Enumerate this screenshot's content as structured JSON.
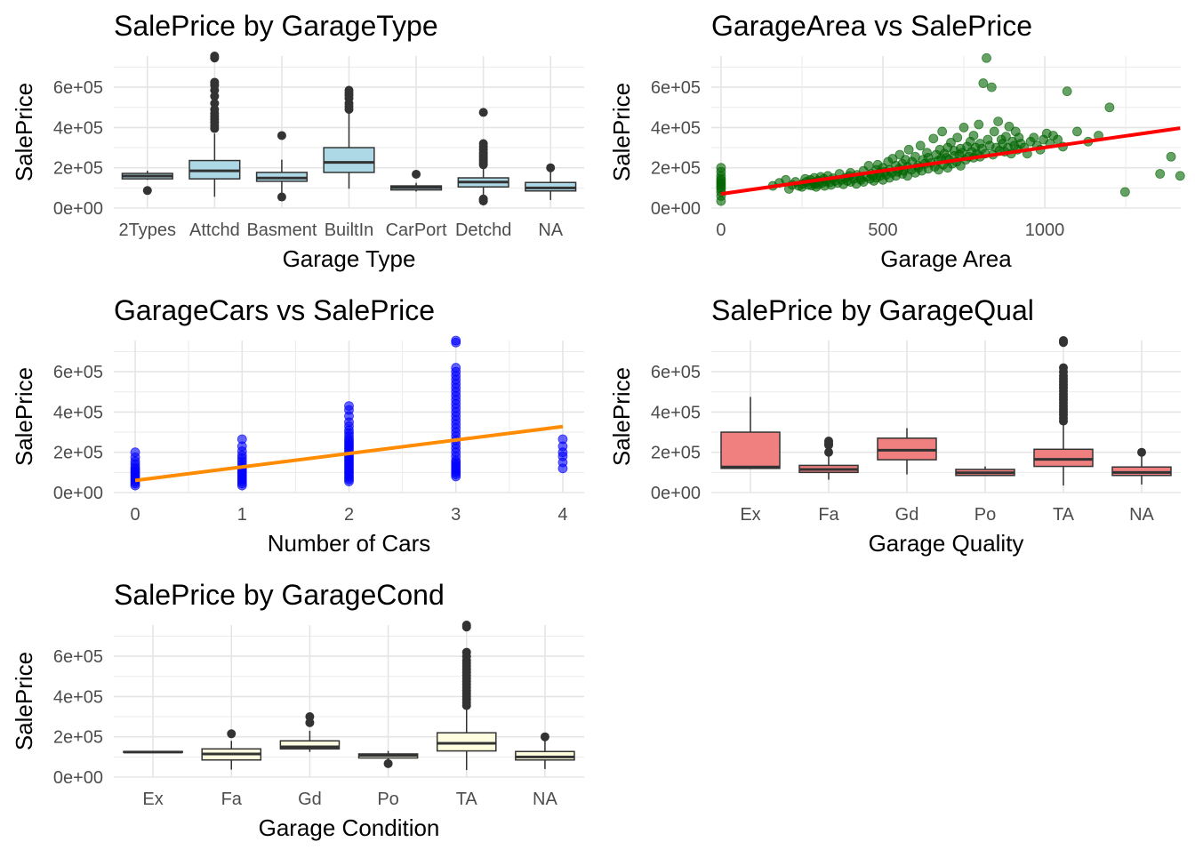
{
  "chart_data": [
    {
      "type": "box",
      "title": "SalePrice by GarageType",
      "xlabel": "Garage Type",
      "ylabel": "SalePrice",
      "ylim": [
        0,
        755000
      ],
      "y_ticks": [
        "0e+00",
        "2e+05",
        "4e+05",
        "6e+05"
      ],
      "fill": "#add8e6",
      "categories": [
        "2Types",
        "Attchd",
        "Basment",
        "BuiltIn",
        "CarPort",
        "Detchd",
        "NA"
      ],
      "boxes": [
        {
          "min": 140000,
          "q1": 145000,
          "median": 159000,
          "q3": 172000,
          "max": 185000,
          "outliers": [
            87000
          ]
        },
        {
          "min": 56000,
          "q1": 145000,
          "median": 185000,
          "q3": 236000,
          "max": 370000,
          "outliers": [
            395000,
            410000,
            425000,
            440000,
            455000,
            470000,
            490000,
            520000,
            555000,
            585000,
            610000,
            625000,
            745000,
            755000
          ]
        },
        {
          "min": 60000,
          "q1": 133000,
          "median": 149000,
          "q3": 177000,
          "max": 240000,
          "outliers": [
            55000,
            360000
          ]
        },
        {
          "min": 96000,
          "q1": 177000,
          "median": 227000,
          "q3": 300000,
          "max": 470000,
          "outliers": [
            490000,
            505000,
            520000,
            545000,
            560000,
            570000,
            585000
          ]
        },
        {
          "min": 82000,
          "q1": 90000,
          "median": 102000,
          "q3": 110000,
          "max": 125000,
          "outliers": [
            168000
          ]
        },
        {
          "min": 52000,
          "q1": 105000,
          "median": 129000,
          "q3": 150000,
          "max": 210000,
          "outliers": [
            35000,
            40000,
            45000,
            215000,
            225000,
            235000,
            245000,
            255000,
            265000,
            275000,
            290000,
            305000,
            320000,
            475000
          ]
        },
        {
          "min": 40000,
          "q1": 85000,
          "median": 100000,
          "q3": 127000,
          "max": 180000,
          "outliers": [
            200000
          ]
        }
      ]
    },
    {
      "type": "scatter",
      "title": "GarageArea vs SalePrice",
      "xlabel": "Garage Area",
      "ylabel": "SalePrice",
      "xlim": [
        -30,
        1420
      ],
      "ylim": [
        0,
        755000
      ],
      "x_ticks": [
        0,
        500,
        1000
      ],
      "y_ticks": [
        "0e+00",
        "2e+05",
        "4e+05",
        "6e+05"
      ],
      "point_color": "#006400",
      "fit_color": "#ff0000",
      "fit": {
        "x": [
          0,
          1418
        ],
        "y": [
          70000,
          397000
        ]
      },
      "points_x": [
        0,
        0,
        0,
        0,
        0,
        0,
        0,
        0,
        0,
        0,
        0,
        0,
        160,
        180,
        200,
        210,
        220,
        230,
        240,
        250,
        252,
        260,
        264,
        270,
        276,
        280,
        286,
        288,
        290,
        294,
        300,
        300,
        308,
        312,
        318,
        320,
        324,
        330,
        336,
        340,
        346,
        352,
        360,
        366,
        372,
        378,
        384,
        390,
        396,
        400,
        400,
        410,
        418,
        420,
        430,
        432,
        440,
        440,
        450,
        456,
        460,
        464,
        470,
        472,
        480,
        480,
        484,
        490,
        492,
        500,
        500,
        504,
        510,
        516,
        520,
        520,
        528,
        530,
        540,
        540,
        546,
        550,
        552,
        560,
        560,
        564,
        570,
        576,
        576,
        580,
        588,
        590,
        600,
        600,
        608,
        610,
        616,
        620,
        624,
        630,
        636,
        640,
        640,
        650,
        656,
        660,
        664,
        670,
        672,
        676,
        680,
        683,
        686,
        690,
        696,
        700,
        700,
        704,
        710,
        714,
        720,
        720,
        728,
        730,
        736,
        740,
        740,
        745,
        750,
        756,
        760,
        765,
        770,
        774,
        780,
        780,
        786,
        790,
        796,
        800,
        800,
        806,
        810,
        816,
        820,
        824,
        830,
        836,
        840,
        844,
        850,
        856,
        860,
        866,
        870,
        876,
        880,
        886,
        890,
        896,
        900,
        906,
        910,
        916,
        920,
        926,
        936,
        946,
        956,
        966,
        976,
        986,
        996,
        1006,
        1016,
        1026,
        1040,
        1056,
        1069,
        1100,
        1134,
        1166,
        1200,
        1248,
        1356,
        1390,
        1418
      ],
      "points_y": [
        35000,
        60000,
        80000,
        95000,
        105000,
        115000,
        125000,
        135000,
        145000,
        160000,
        180000,
        200000,
        110000,
        125000,
        140000,
        95000,
        115000,
        130000,
        110000,
        105000,
        120000,
        145000,
        130000,
        115000,
        140000,
        112000,
        128000,
        150000,
        120000,
        105000,
        118000,
        136000,
        155000,
        125000,
        145000,
        110000,
        132000,
        160000,
        128000,
        115000,
        148000,
        135000,
        125000,
        170000,
        140000,
        118000,
        150000,
        135000,
        160000,
        130000,
        175000,
        145000,
        120000,
        165000,
        150000,
        140000,
        185000,
        130000,
        155000,
        210000,
        145000,
        170000,
        160000,
        135000,
        190000,
        150000,
        215000,
        175000,
        160000,
        140000,
        200000,
        180000,
        165000,
        230000,
        150000,
        190000,
        175000,
        245000,
        160000,
        210000,
        180000,
        195000,
        265000,
        170000,
        220000,
        185000,
        240000,
        160000,
        205000,
        290000,
        190000,
        230000,
        175000,
        255000,
        210000,
        200000,
        310000,
        185000,
        240000,
        220000,
        275000,
        195000,
        250000,
        225000,
        345000,
        205000,
        265000,
        235000,
        190000,
        290000,
        245000,
        380000,
        215000,
        270000,
        250000,
        200000,
        300000,
        240000,
        325000,
        220000,
        260000,
        285000,
        230000,
        350000,
        265000,
        210000,
        295000,
        275000,
        400000,
        240000,
        305000,
        255000,
        330000,
        280000,
        250000,
        360000,
        300000,
        270000,
        415000,
        255000,
        320000,
        295000,
        620000,
        270000,
        745000,
        340000,
        310000,
        600000,
        265000,
        380000,
        300000,
        430000,
        285000,
        340000,
        320000,
        280000,
        355000,
        300000,
        405000,
        270000,
        330000,
        310000,
        380000,
        290000,
        350000,
        320000,
        300000,
        270000,
        330000,
        350000,
        310000,
        290000,
        340000,
        370000,
        320000,
        360000,
        340000,
        305000,
        580000,
        380000,
        330000,
        360000,
        500000,
        80000,
        170000,
        255000,
        160000
      ]
    },
    {
      "type": "scatter",
      "title": "GarageCars vs SalePrice",
      "xlabel": "Number of Cars",
      "ylabel": "SalePrice",
      "xlim": [
        -0.2,
        4.2
      ],
      "ylim": [
        0,
        755000
      ],
      "x_ticks": [
        0,
        1,
        2,
        3,
        4
      ],
      "y_ticks": [
        "0e+00",
        "2e+05",
        "4e+05",
        "6e+05"
      ],
      "point_color": "#0000ff",
      "fit_color": "#ff8c00",
      "fit": {
        "x": [
          0,
          4
        ],
        "y": [
          60000,
          328000
        ]
      },
      "points_x": [
        0,
        0,
        0,
        0,
        0,
        0,
        0,
        0,
        0,
        0,
        0,
        0,
        0,
        0,
        1,
        1,
        1,
        1,
        1,
        1,
        1,
        1,
        1,
        1,
        1,
        1,
        1,
        1,
        1,
        1,
        1,
        2,
        2,
        2,
        2,
        2,
        2,
        2,
        2,
        2,
        2,
        2,
        2,
        2,
        2,
        2,
        2,
        2,
        2,
        2,
        2,
        2,
        2,
        2,
        2,
        2,
        2,
        2,
        2,
        2,
        2,
        3,
        3,
        3,
        3,
        3,
        3,
        3,
        3,
        3,
        3,
        3,
        3,
        3,
        3,
        3,
        3,
        3,
        3,
        3,
        3,
        3,
        3,
        3,
        3,
        3,
        3,
        3,
        3,
        3,
        3,
        3,
        3,
        3,
        3,
        4,
        4,
        4,
        4,
        4,
        4
      ],
      "points_y": [
        35000,
        45000,
        55000,
        65000,
        75000,
        85000,
        95000,
        105000,
        115000,
        125000,
        140000,
        155000,
        175000,
        200000,
        35000,
        45000,
        55000,
        65000,
        75000,
        85000,
        95000,
        105000,
        115000,
        125000,
        140000,
        155000,
        170000,
        185000,
        205000,
        230000,
        265000,
        55000,
        65000,
        75000,
        85000,
        95000,
        105000,
        115000,
        125000,
        135000,
        145000,
        155000,
        165000,
        175000,
        185000,
        195000,
        205000,
        215000,
        225000,
        235000,
        245000,
        255000,
        265000,
        280000,
        295000,
        310000,
        330000,
        350000,
        380000,
        410000,
        430000,
        80000,
        100000,
        120000,
        140000,
        160000,
        180000,
        200000,
        220000,
        240000,
        260000,
        280000,
        300000,
        320000,
        340000,
        360000,
        380000,
        400000,
        420000,
        440000,
        460000,
        480000,
        500000,
        520000,
        540000,
        560000,
        580000,
        600000,
        620000,
        745000,
        755000,
        90000,
        110000,
        130000,
        150000,
        120000,
        150000,
        180000,
        200000,
        230000,
        265000
      ]
    },
    {
      "type": "box",
      "title": "SalePrice by GarageQual",
      "xlabel": "Garage Quality",
      "ylabel": "SalePrice",
      "ylim": [
        0,
        755000
      ],
      "y_ticks": [
        "0e+00",
        "2e+05",
        "4e+05",
        "6e+05"
      ],
      "fill": "#f08080",
      "categories": [
        "Ex",
        "Fa",
        "Gd",
        "Po",
        "TA",
        "NA"
      ],
      "boxes": [
        {
          "min": 120000,
          "q1": 120000,
          "median": 127000,
          "q3": 300000,
          "max": 475000,
          "outliers": []
        },
        {
          "min": 64000,
          "q1": 100000,
          "median": 115000,
          "q3": 135000,
          "max": 180000,
          "outliers": [
            200000,
            235000,
            245000,
            256000
          ]
        },
        {
          "min": 90000,
          "q1": 163000,
          "median": 210000,
          "q3": 270000,
          "max": 320000,
          "outliers": []
        },
        {
          "min": 82000,
          "q1": 85000,
          "median": 98000,
          "q3": 115000,
          "max": 130000,
          "outliers": []
        },
        {
          "min": 35000,
          "q1": 130000,
          "median": 165000,
          "q3": 215000,
          "max": 340000,
          "outliers": [
            355000,
            370000,
            385000,
            400000,
            415000,
            430000,
            445000,
            460000,
            475000,
            490000,
            505000,
            520000,
            535000,
            550000,
            565000,
            580000,
            600000,
            620000,
            745000,
            755000
          ]
        },
        {
          "min": 40000,
          "q1": 85000,
          "median": 100000,
          "q3": 127000,
          "max": 180000,
          "outliers": [
            200000
          ]
        }
      ]
    },
    {
      "type": "box",
      "title": "SalePrice by GarageCond",
      "xlabel": "Garage Condition",
      "ylabel": "SalePrice",
      "ylim": [
        0,
        755000
      ],
      "y_ticks": [
        "0e+00",
        "2e+05",
        "4e+05",
        "6e+05"
      ],
      "fill": "#ffffe0",
      "categories": [
        "Ex",
        "Fa",
        "Gd",
        "Po",
        "TA",
        "NA"
      ],
      "boxes": [
        {
          "min": 124000,
          "q1": 124000,
          "median": 124000,
          "q3": 127000,
          "max": 127000,
          "outliers": []
        },
        {
          "min": 37000,
          "q1": 85000,
          "median": 115000,
          "q3": 140000,
          "max": 180000,
          "outliers": [
            215000
          ]
        },
        {
          "min": 125000,
          "q1": 140000,
          "median": 150000,
          "q3": 180000,
          "max": 230000,
          "outliers": [
            270000,
            300000
          ]
        },
        {
          "min": 82000,
          "q1": 95000,
          "median": 108000,
          "q3": 115000,
          "max": 130000,
          "outliers": [
            67000
          ]
        },
        {
          "min": 35000,
          "q1": 130000,
          "median": 168000,
          "q3": 220000,
          "max": 345000,
          "outliers": [
            355000,
            370000,
            385000,
            400000,
            415000,
            430000,
            445000,
            460000,
            475000,
            490000,
            505000,
            520000,
            535000,
            550000,
            565000,
            580000,
            600000,
            620000,
            745000,
            755000
          ]
        },
        {
          "min": 40000,
          "q1": 85000,
          "median": 100000,
          "q3": 127000,
          "max": 180000,
          "outliers": [
            200000
          ]
        }
      ]
    }
  ]
}
